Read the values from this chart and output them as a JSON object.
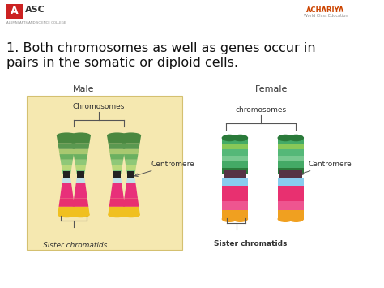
{
  "bg_color": "#ffffff",
  "title_line1": "1. Both chromosomes as well as genes occur in",
  "title_line2": "pairs in the somatic or diploid cells.",
  "title_fontsize": 11.5,
  "title_color": "#111111",
  "male_label": "Male",
  "female_label": "Female",
  "male_box_color": "#f5e8b0",
  "male_box_edge": "#d4c070",
  "chrom_label_male": "Chromosomes",
  "centromere_label_male": "Centromere",
  "sister_label_male": "Sister chromatids",
  "chrom_label_female": "chromosomes",
  "centromere_label_female": "Centromere",
  "sister_label_female": "Sister chromatids",
  "label_color": "#333333",
  "aasc_color": "#cc2222",
  "achariya_color": "#cc4400"
}
